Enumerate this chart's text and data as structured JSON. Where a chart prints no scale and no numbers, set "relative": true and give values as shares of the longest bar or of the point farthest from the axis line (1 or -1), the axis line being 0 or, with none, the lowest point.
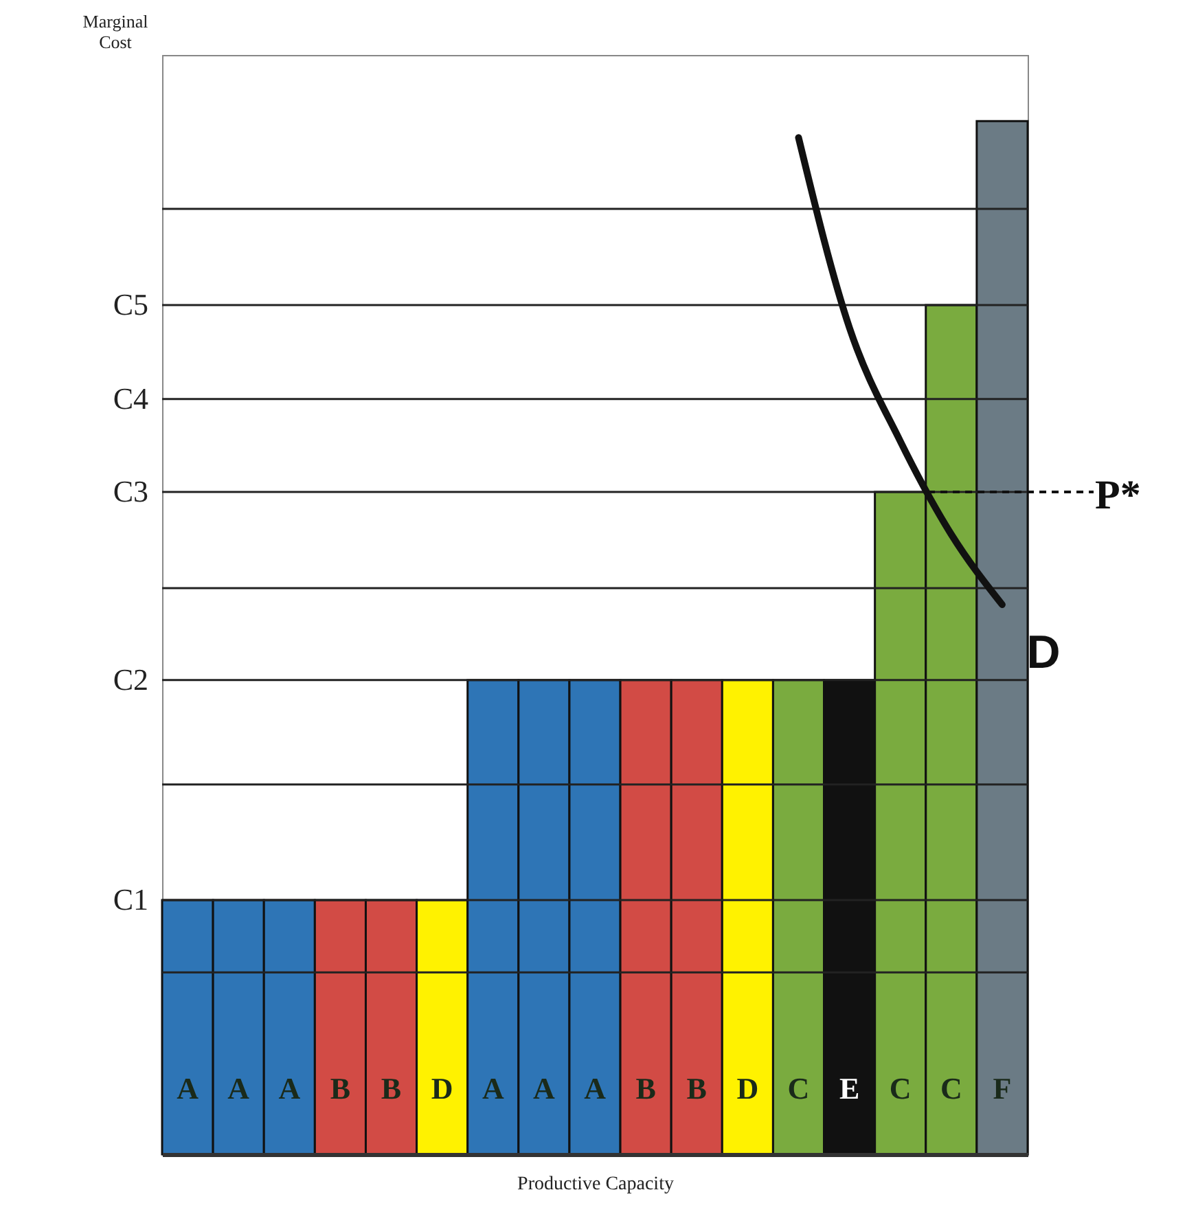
{
  "chart_data": {
    "type": "bar",
    "relative": true,
    "xlabel": "Productive Capacity",
    "ylabel": "Marginal Cost",
    "categories": [
      "A",
      "A",
      "A",
      "B",
      "B",
      "D",
      "A",
      "A",
      "A",
      "B",
      "B",
      "D",
      "C",
      "E",
      "C",
      "C",
      "F"
    ],
    "values": [
      0.246,
      0.246,
      0.246,
      0.246,
      0.246,
      0.246,
      0.459,
      0.459,
      0.459,
      0.459,
      0.459,
      0.459,
      0.459,
      0.459,
      0.641,
      0.822,
      1
    ],
    "colors": [
      "#2e75b6",
      "#2e75b6",
      "#2e75b6",
      "#d24b45",
      "#d24b45",
      "#fff200",
      "#2e75b6",
      "#2e75b6",
      "#2e75b6",
      "#d24b45",
      "#d24b45",
      "#fff200",
      "#7aab3f",
      "#111111",
      "#7aab3f",
      "#7aab3f",
      "#6b7b85"
    ],
    "series": [
      {
        "name": "D",
        "type": "line",
        "color": "#111111",
        "values": [
          null,
          null,
          null,
          null,
          null,
          null,
          null,
          null,
          null,
          null,
          null,
          null,
          0.984,
          0.8,
          0.69,
          0.6,
          0.532
        ]
      }
    ],
    "ref_lines": [
      {
        "axis": "y",
        "value": 0.176
      },
      {
        "axis": "y",
        "value": 0.246,
        "label": "C1"
      },
      {
        "axis": "y",
        "value": 0.358
      },
      {
        "axis": "y",
        "value": 0.459,
        "label": "C2"
      },
      {
        "axis": "y",
        "value": 0.548
      },
      {
        "axis": "y",
        "value": 0.641,
        "label": "C3"
      },
      {
        "axis": "y",
        "value": 0.731,
        "label": "C4"
      },
      {
        "axis": "y",
        "value": 0.822,
        "label": "C5"
      },
      {
        "axis": "y",
        "value": 0.915
      },
      {
        "axis": "y",
        "value": 0.641,
        "label": "P*",
        "line_style": "dashed"
      }
    ]
  }
}
